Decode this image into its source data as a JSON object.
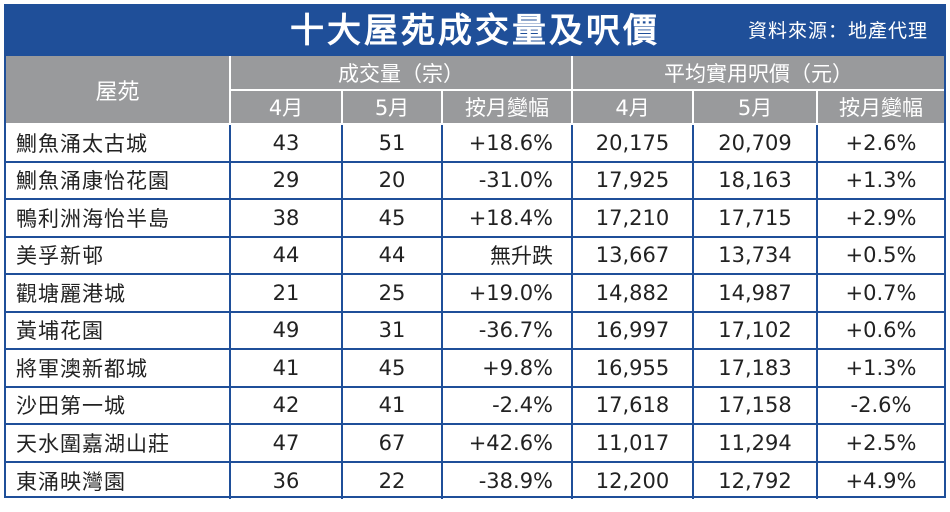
{
  "title": "十大屋苑成交量及呎價",
  "source": "資料來源：地產代理",
  "headers": {
    "estate": "屋苑",
    "volume_group": "成交量（宗）",
    "price_group": "平均實用呎價（元）",
    "april": "4月",
    "may": "5月",
    "mom_change": "按月變幅"
  },
  "rows": [
    {
      "name": "鰂魚涌太古城",
      "vol_apr": "43",
      "vol_may": "51",
      "vol_chg": "+18.6%",
      "price_apr": "20,175",
      "price_may": "20,709",
      "price_chg": "+2.6%"
    },
    {
      "name": "鰂魚涌康怡花園",
      "vol_apr": "29",
      "vol_may": "20",
      "vol_chg": "-31.0%",
      "price_apr": "17,925",
      "price_may": "18,163",
      "price_chg": "+1.3%"
    },
    {
      "name": "鴨利洲海怡半島",
      "vol_apr": "38",
      "vol_may": "45",
      "vol_chg": "+18.4%",
      "price_apr": "17,210",
      "price_may": "17,715",
      "price_chg": "+2.9%"
    },
    {
      "name": "美孚新邨",
      "vol_apr": "44",
      "vol_may": "44",
      "vol_chg": "無升跌",
      "price_apr": "13,667",
      "price_may": "13,734",
      "price_chg": "+0.5%"
    },
    {
      "name": "觀塘麗港城",
      "vol_apr": "21",
      "vol_may": "25",
      "vol_chg": "+19.0%",
      "price_apr": "14,882",
      "price_may": "14,987",
      "price_chg": "+0.7%"
    },
    {
      "name": "黃埔花園",
      "vol_apr": "49",
      "vol_may": "31",
      "vol_chg": "-36.7%",
      "price_apr": "16,997",
      "price_may": "17,102",
      "price_chg": "+0.6%"
    },
    {
      "name": "將軍澳新都城",
      "vol_apr": "41",
      "vol_may": "45",
      "vol_chg": "+9.8%",
      "price_apr": "16,955",
      "price_may": "17,183",
      "price_chg": "+1.3%"
    },
    {
      "name": "沙田第一城",
      "vol_apr": "42",
      "vol_may": "41",
      "vol_chg": "-2.4%",
      "price_apr": "17,618",
      "price_may": "17,158",
      "price_chg": "-2.6%"
    },
    {
      "name": "天水圍嘉湖山莊",
      "vol_apr": "47",
      "vol_may": "67",
      "vol_chg": "+42.6%",
      "price_apr": "11,017",
      "price_may": "11,294",
      "price_chg": "+2.5%"
    },
    {
      "name": "東涌映灣園",
      "vol_apr": "36",
      "vol_may": "22",
      "vol_chg": "-38.9%",
      "price_apr": "12,200",
      "price_may": "12,792",
      "price_chg": "+4.9%"
    }
  ],
  "colors": {
    "header_blue": "#1f4f99",
    "header_gray": "#999a9c"
  }
}
